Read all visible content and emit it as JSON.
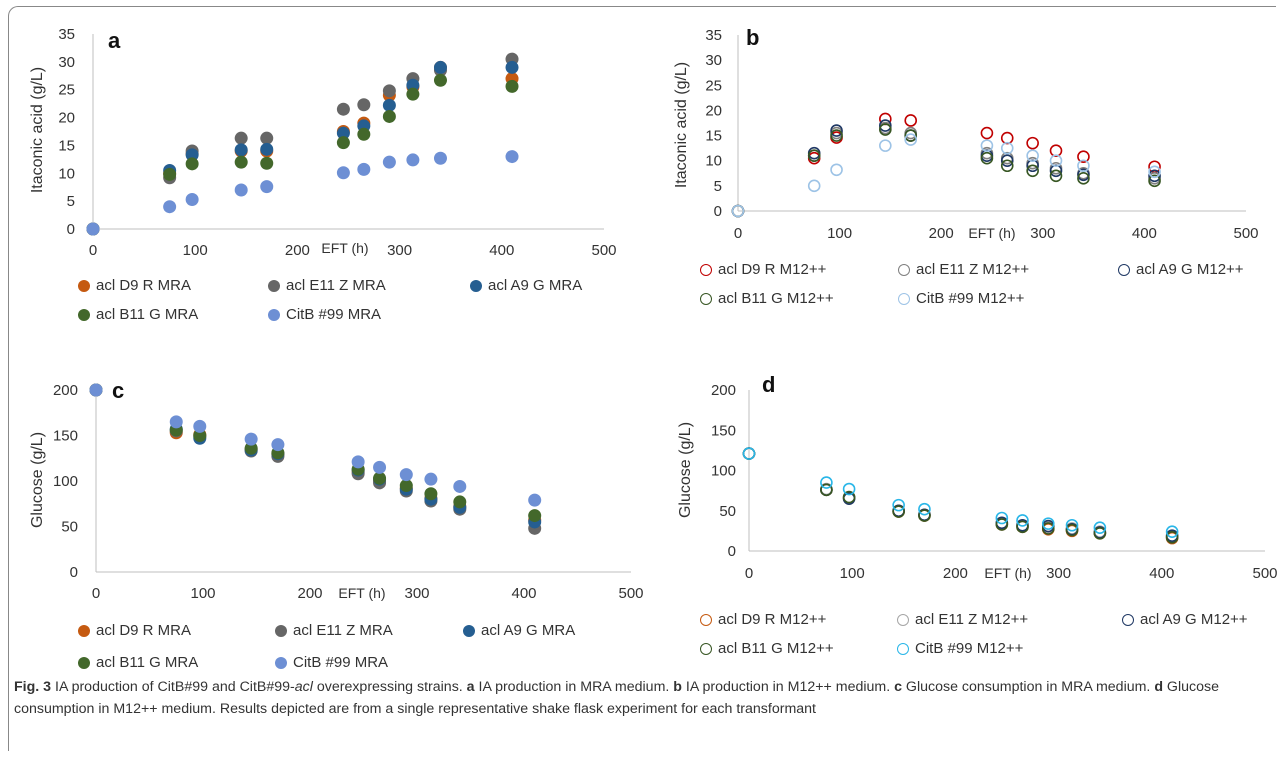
{
  "caption": {
    "fig_label": "Fig. 3",
    "text_1": " IA production of CitB#99 and CitB#99-",
    "text_italic": "acl",
    "text_2": " overexpressing strains. ",
    "a_label": "a",
    "a_text": " IA production in MRA medium. ",
    "b_label": "b",
    "b_text": " IA production in M12++ medium. ",
    "c_label": "c",
    "c_text": " Glucose consumption in MRA medium. ",
    "d_label": "d",
    "d_text": " Glucose consumption in M12++ medium. Results depicted are from a single representative shake flask experiment for each transformant"
  },
  "chart_data": [
    {
      "panel": "a",
      "type": "scatter",
      "marker": "filled",
      "xlabel": "EFT (h)",
      "ylabel": "Itaconic acid (g/L)",
      "xlim": [
        0,
        500
      ],
      "ylim": [
        0,
        35
      ],
      "xticks": [
        0,
        100,
        200,
        300,
        400,
        500
      ],
      "yticks": [
        0,
        5,
        10,
        15,
        20,
        25,
        30,
        35
      ],
      "legend_placement": "bottom",
      "series": [
        {
          "name": "acl D9 R MRA",
          "color": "#c55a11",
          "x": [
            0,
            75,
            97,
            145,
            170,
            245,
            265,
            290,
            313,
            340,
            410
          ],
          "y": [
            0,
            10,
            13.5,
            14,
            14,
            17.5,
            19,
            24,
            25.5,
            29,
            27
          ]
        },
        {
          "name": "acl E11 Z MRA",
          "color": "#666666",
          "x": [
            0,
            75,
            97,
            145,
            170,
            245,
            265,
            290,
            313,
            340,
            410
          ],
          "y": [
            0,
            9.2,
            14,
            16.3,
            16.3,
            21.5,
            22.3,
            24.8,
            27,
            28.5,
            30.5
          ]
        },
        {
          "name": "acl A9 G MRA",
          "color": "#255e91",
          "x": [
            0,
            75,
            97,
            145,
            170,
            245,
            265,
            290,
            313,
            340,
            410
          ],
          "y": [
            0,
            10.5,
            13.3,
            14.2,
            14.3,
            17.2,
            18.5,
            22.2,
            25.8,
            29,
            29
          ]
        },
        {
          "name": "acl B11 G MRA",
          "color": "#43682b",
          "x": [
            0,
            75,
            97,
            145,
            170,
            245,
            265,
            290,
            313,
            340,
            410
          ],
          "y": [
            0,
            9.8,
            11.7,
            12,
            11.8,
            15.5,
            17,
            20.2,
            24.2,
            26.7,
            25.6
          ]
        },
        {
          "name": "CitB #99 MRA",
          "color": "#6d8fd4",
          "x": [
            0,
            75,
            97,
            145,
            170,
            245,
            265,
            290,
            313,
            340,
            410
          ],
          "y": [
            0,
            4,
            5.3,
            7,
            7.6,
            10.1,
            10.7,
            12,
            12.4,
            12.7,
            13
          ]
        }
      ]
    },
    {
      "panel": "b",
      "type": "scatter",
      "marker": "open",
      "xlabel": "EFT (h)",
      "ylabel": "Itaconic acid (g/L)",
      "xlim": [
        0,
        500
      ],
      "ylim": [
        0,
        35
      ],
      "xticks": [
        0,
        100,
        200,
        300,
        400,
        500
      ],
      "yticks": [
        0,
        5,
        10,
        15,
        20,
        25,
        30,
        35
      ],
      "legend_placement": "bottom",
      "series": [
        {
          "name": "acl D9 R M12++",
          "color": "#c00000",
          "x": [
            0,
            75,
            97,
            145,
            170,
            245,
            265,
            290,
            313,
            340,
            410
          ],
          "y": [
            0,
            10.5,
            14.6,
            18.3,
            18,
            15.5,
            14.5,
            13.5,
            12,
            10.8,
            8.8
          ]
        },
        {
          "name": "acl E11 Z M12++",
          "color": "#7f7f7f",
          "x": [
            0,
            75,
            97,
            145,
            170,
            245,
            265,
            290,
            313,
            340,
            410
          ],
          "y": [
            0,
            11,
            15.5,
            16.5,
            15.5,
            11.5,
            10.5,
            9.5,
            8.5,
            7.5,
            6.5
          ]
        },
        {
          "name": "acl A9 G M12++",
          "color": "#1f3864",
          "x": [
            0,
            75,
            97,
            145,
            170,
            245,
            265,
            290,
            313,
            340,
            410
          ],
          "y": [
            0,
            11.5,
            16,
            17,
            15,
            11,
            10,
            9,
            8,
            7.2,
            7
          ]
        },
        {
          "name": "acl B11 G M12++",
          "color": "#375623",
          "x": [
            0,
            75,
            97,
            145,
            170,
            245,
            265,
            290,
            313,
            340,
            410
          ],
          "y": [
            0,
            11,
            15,
            16.2,
            15,
            10.5,
            9,
            8,
            7,
            6.5,
            6
          ]
        },
        {
          "name": "CitB #99 M12++",
          "color": "#9dc3e6",
          "x": [
            0,
            75,
            97,
            145,
            170,
            245,
            265,
            290,
            313,
            340,
            410
          ],
          "y": [
            0,
            5,
            8.2,
            13,
            14.2,
            13,
            12.5,
            11,
            10,
            9,
            7.8
          ]
        }
      ]
    },
    {
      "panel": "c",
      "type": "scatter",
      "marker": "filled",
      "xlabel": "EFT (h)",
      "ylabel": "Glucose (g/L)",
      "xlim": [
        0,
        500
      ],
      "ylim": [
        0,
        200
      ],
      "xticks": [
        0,
        100,
        200,
        300,
        400,
        500
      ],
      "yticks": [
        0,
        50,
        100,
        150,
        200
      ],
      "legend_placement": "bottom",
      "series": [
        {
          "name": "acl D9 R MRA",
          "color": "#c55a11",
          "x": [
            0,
            75,
            97,
            145,
            170,
            245,
            265,
            290,
            313,
            340,
            410
          ],
          "y": [
            200,
            153,
            151,
            135,
            129,
            110,
            100,
            92,
            81,
            72,
            57
          ]
        },
        {
          "name": "acl E11 Z MRA",
          "color": "#666666",
          "x": [
            0,
            75,
            97,
            145,
            170,
            245,
            265,
            290,
            313,
            340,
            410
          ],
          "y": [
            200,
            155,
            149,
            133,
            127,
            108,
            98,
            89,
            78,
            69,
            48
          ]
        },
        {
          "name": "acl A9 G MRA",
          "color": "#255e91",
          "x": [
            0,
            75,
            97,
            145,
            170,
            245,
            265,
            290,
            313,
            340,
            410
          ],
          "y": [
            200,
            157,
            147,
            134,
            130,
            112,
            102,
            91,
            80,
            71,
            55
          ]
        },
        {
          "name": "acl B11 G MRA",
          "color": "#43682b",
          "x": [
            0,
            75,
            97,
            145,
            170,
            245,
            265,
            290,
            313,
            340,
            410
          ],
          "y": [
            200,
            156,
            150,
            136,
            131,
            113,
            103,
            95,
            86,
            77,
            62
          ]
        },
        {
          "name": "CitB #99 MRA",
          "color": "#6d8fd4",
          "x": [
            0,
            75,
            97,
            145,
            170,
            245,
            265,
            290,
            313,
            340,
            410
          ],
          "y": [
            200,
            165,
            160,
            146,
            140,
            121,
            115,
            107,
            102,
            94,
            79
          ]
        }
      ]
    },
    {
      "panel": "d",
      "type": "scatter",
      "marker": "open",
      "xlabel": "EFT (h)",
      "ylabel": "Glucose (g/L)",
      "xlim": [
        0,
        500
      ],
      "ylim": [
        0,
        200
      ],
      "xticks": [
        0,
        100,
        200,
        300,
        400,
        500
      ],
      "yticks": [
        0,
        50,
        100,
        150,
        200
      ],
      "legend_placement": "bottom",
      "series": [
        {
          "name": "acl D9 R M12++",
          "color": "#c55a11",
          "x": [
            0,
            75,
            97,
            145,
            170,
            245,
            265,
            290,
            313,
            340,
            410
          ],
          "y": [
            121,
            76,
            66,
            49,
            44,
            33,
            30,
            27,
            25,
            22,
            16
          ]
        },
        {
          "name": "acl E11 Z M12++",
          "color": "#a6a6a6",
          "x": [
            0,
            75,
            97,
            145,
            170,
            245,
            265,
            290,
            313,
            340,
            410
          ],
          "y": [
            121,
            77,
            66,
            50,
            45,
            34,
            31,
            30,
            28,
            24,
            18
          ]
        },
        {
          "name": "acl A9 G M12++",
          "color": "#1f3864",
          "x": [
            0,
            75,
            97,
            145,
            170,
            245,
            265,
            290,
            313,
            340,
            410
          ],
          "y": [
            121,
            76,
            65,
            50,
            45,
            35,
            32,
            31,
            27,
            23,
            19
          ]
        },
        {
          "name": "acl B11 G M12++",
          "color": "#375623",
          "x": [
            0,
            75,
            97,
            145,
            170,
            245,
            265,
            290,
            313,
            340,
            410
          ],
          "y": [
            121,
            76,
            67,
            49,
            44,
            33,
            30,
            28,
            26,
            22,
            17
          ]
        },
        {
          "name": "CitB #99 M12++",
          "color": "#29b6e8",
          "x": [
            0,
            75,
            97,
            145,
            170,
            245,
            265,
            290,
            313,
            340,
            410
          ],
          "y": [
            121,
            85,
            77,
            57,
            52,
            41,
            38,
            34,
            32,
            29,
            24
          ]
        }
      ]
    }
  ]
}
